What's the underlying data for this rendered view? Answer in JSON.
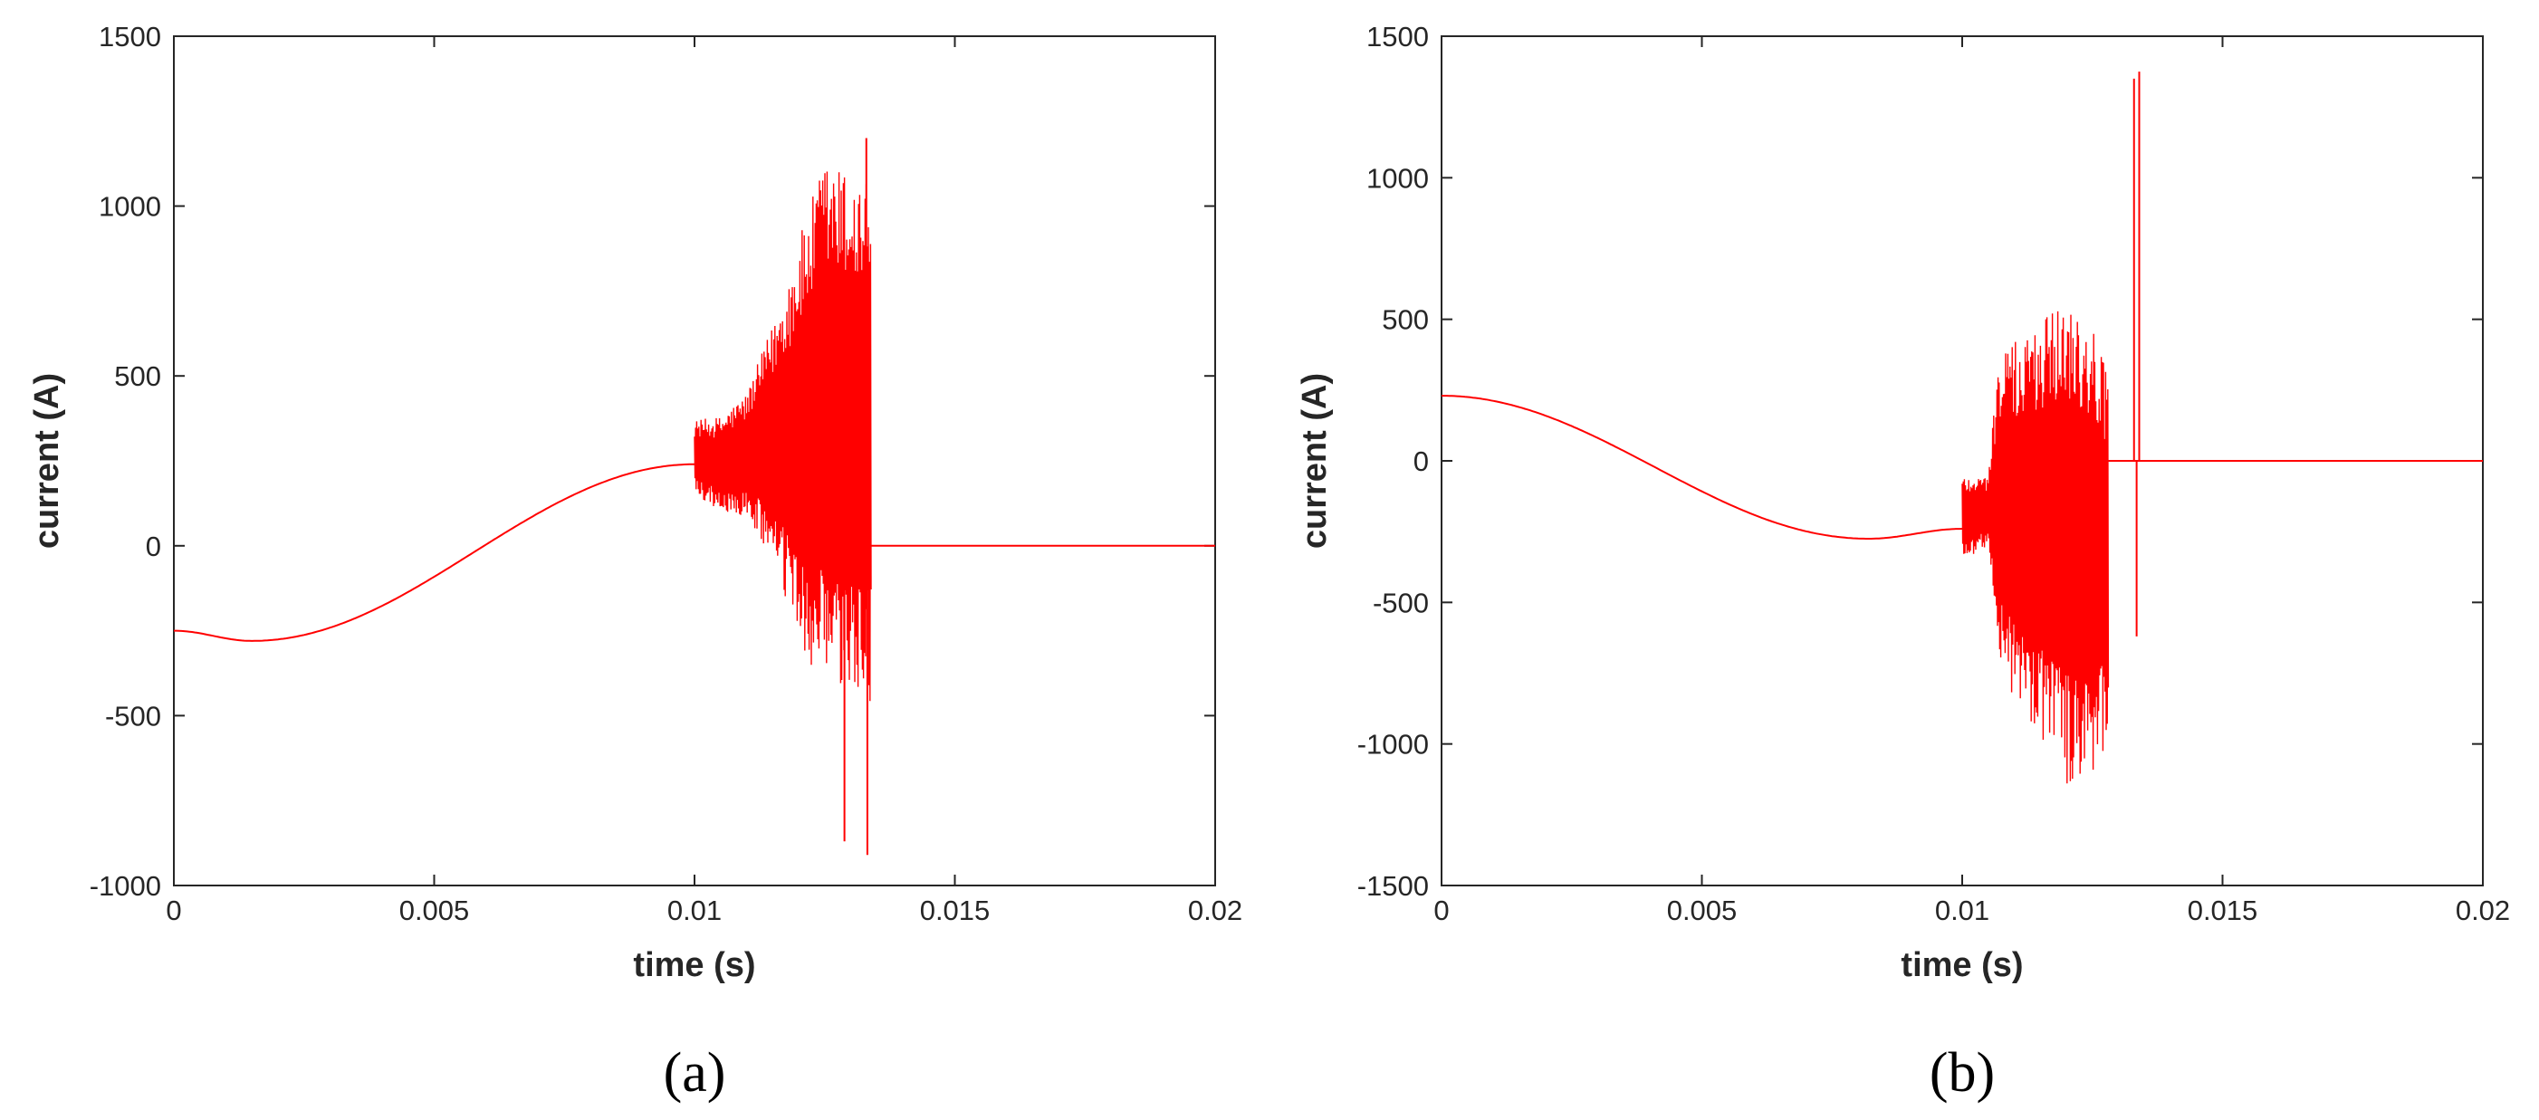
{
  "chart_data": [
    {
      "type": "line",
      "panel_label": "(a)",
      "xlabel": "time (s)",
      "ylabel": "current (A)",
      "xlim": [
        0,
        0.02
      ],
      "ylim": [
        -1000,
        1500
      ],
      "xticks": [
        0,
        0.005,
        0.01,
        0.015,
        0.02
      ],
      "xtick_labels": [
        "0",
        "0.005",
        "0.01",
        "0.015",
        "0.02"
      ],
      "yticks": [
        -1000,
        -500,
        0,
        500,
        1000,
        1500
      ],
      "ytick_labels": [
        "-1000",
        "-500",
        "0",
        "500",
        "1000",
        "1500"
      ],
      "grid": false,
      "series_color": "#ff0000",
      "smooth_segment": {
        "x_start": 0,
        "x_end": 0.01,
        "y_start": -250,
        "y_min": -280,
        "x_at_min": 0.0015,
        "y_end": 240
      },
      "burst_envelope": {
        "x": [
          0.01,
          0.0105,
          0.011,
          0.0115,
          0.012,
          0.0125,
          0.013,
          0.0134
        ],
        "upper": [
          370,
          380,
          450,
          650,
          900,
          1140,
          1100,
          1080
        ],
        "lower": [
          150,
          100,
          80,
          -50,
          -300,
          -430,
          -450,
          -460
        ]
      },
      "spikes": [
        {
          "x": 0.01288,
          "y": -870
        },
        {
          "x": 0.01332,
          "y": -910
        },
        {
          "x": 0.0133,
          "y": 1200
        }
      ],
      "flat_segment": {
        "x_start": 0.0134,
        "x_end": 0.02,
        "y": 0
      }
    },
    {
      "type": "line",
      "panel_label": "(b)",
      "xlabel": "time (s)",
      "ylabel": "current (A)",
      "xlim": [
        0,
        0.02
      ],
      "ylim": [
        -1500,
        1500
      ],
      "xticks": [
        0,
        0.005,
        0.01,
        0.015,
        0.02
      ],
      "xtick_labels": [
        "0",
        "0.005",
        "0.01",
        "0.015",
        "0.02"
      ],
      "yticks": [
        -1500,
        -1000,
        -500,
        0,
        500,
        1000,
        1500
      ],
      "ytick_labels": [
        "-1500",
        "-1000",
        "-500",
        "0",
        "500",
        "1000",
        "1500"
      ],
      "grid": false,
      "series_color": "#ff0000",
      "smooth_segment": {
        "x_start": 0,
        "x_end": 0.01,
        "y_start": 230,
        "y_min": -275,
        "x_at_min": 0.0082,
        "y_end": -240
      },
      "burst_envelope": {
        "x": [
          0.01,
          0.0105,
          0.0107,
          0.011,
          0.0115,
          0.012,
          0.0125,
          0.0128
        ],
        "upper": [
          -50,
          -50,
          380,
          420,
          500,
          600,
          500,
          320
        ],
        "lower": [
          -350,
          -300,
          -700,
          -850,
          -1000,
          -1150,
          -1100,
          -1000
        ]
      },
      "spikes": [
        {
          "x": 0.0133,
          "y": 1350
        },
        {
          "x": 0.0134,
          "y": 1375
        },
        {
          "x": 0.01335,
          "y": -620
        }
      ],
      "flat_segment": {
        "x_start": 0.0128,
        "x_end": 0.02,
        "y": 0
      }
    }
  ]
}
